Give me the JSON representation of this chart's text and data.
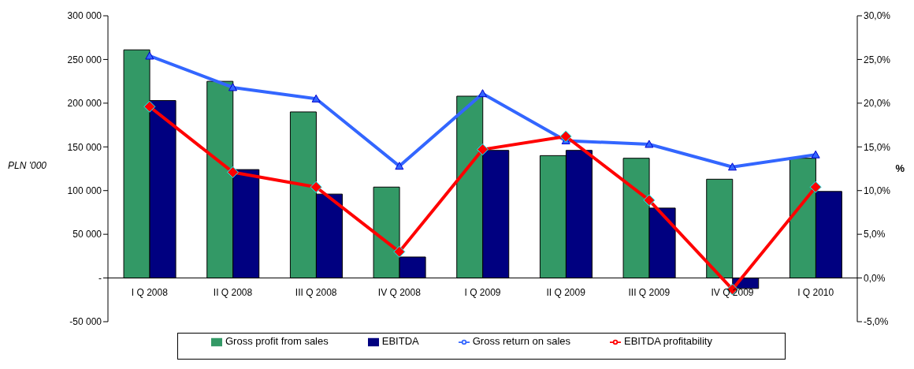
{
  "chart_data": {
    "type": "bar",
    "ylabel": "PLN '000",
    "y2label": "%",
    "categories": [
      "I Q 2008",
      "II Q 2008",
      "III Q 2008",
      "IV Q 2008",
      "I Q 2009",
      "II Q 2009",
      "III Q 2009",
      "IV Q 2009",
      "I Q 2010"
    ],
    "series": [
      {
        "name": "Gross profit from sales",
        "color": "#339966",
        "values": [
          261000,
          225000,
          190000,
          104000,
          208000,
          140000,
          137000,
          113000,
          137000
        ]
      },
      {
        "name": "EBITDA",
        "color": "#000080",
        "values": [
          203000,
          124000,
          96000,
          24000,
          146000,
          146000,
          80000,
          -12000,
          99000
        ]
      },
      {
        "name": "Gross return on sales",
        "type": "line",
        "axis": "y2",
        "marker": "triangle",
        "color": "#3366ff",
        "values": [
          25.4,
          21.8,
          20.5,
          12.8,
          21.1,
          15.7,
          15.3,
          12.7,
          14.1
        ]
      },
      {
        "name": "EBITDA profitability",
        "type": "line",
        "axis": "y2",
        "marker": "diamond",
        "color": "#ff0000",
        "values": [
          19.6,
          12.1,
          10.4,
          3.0,
          14.7,
          16.2,
          8.9,
          -1.3,
          10.4
        ]
      }
    ],
    "ylim": [
      -50000,
      300000
    ],
    "yticks": [
      {
        "value": -50000,
        "label": "-50 000"
      },
      {
        "value": 0,
        "label": "-"
      },
      {
        "value": 50000,
        "label": "50 000"
      },
      {
        "value": 100000,
        "label": "100 000"
      },
      {
        "value": 150000,
        "label": "150 000"
      },
      {
        "value": 200000,
        "label": "200 000"
      },
      {
        "value": 250000,
        "label": "250 000"
      },
      {
        "value": 300000,
        "label": "300 000"
      }
    ],
    "y2lim": [
      -5,
      30
    ],
    "y2ticks": [
      {
        "value": -5,
        "label": "-5,0%"
      },
      {
        "value": 0,
        "label": "0,0%"
      },
      {
        "value": 5,
        "label": "5,0%"
      },
      {
        "value": 10,
        "label": "10,0%"
      },
      {
        "value": 15,
        "label": "15,0%"
      },
      {
        "value": 20,
        "label": "20,0%"
      },
      {
        "value": 25,
        "label": "25,0%"
      },
      {
        "value": 30,
        "label": "30,0%"
      }
    ],
    "grid": false,
    "legend": "bottom"
  }
}
